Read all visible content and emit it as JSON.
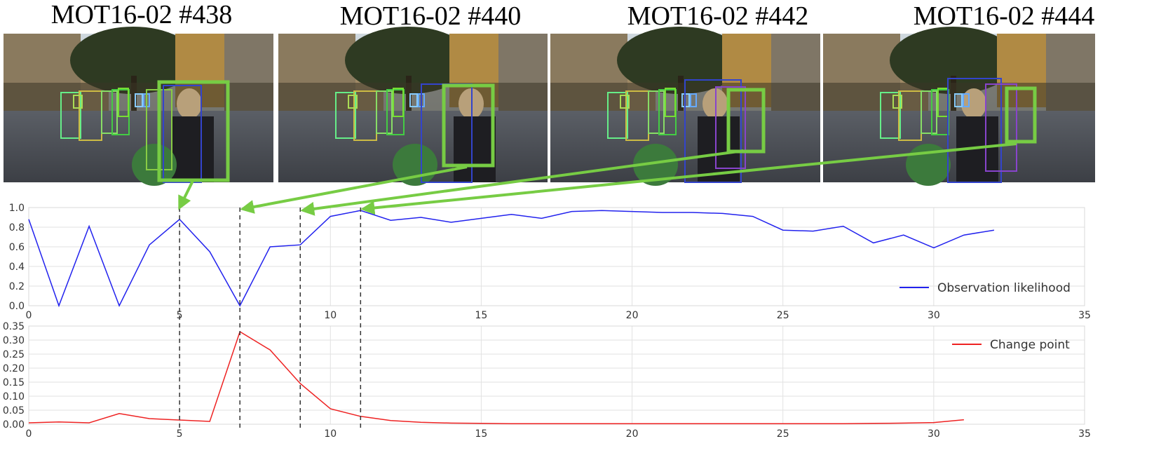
{
  "frames": [
    {
      "title": "MOT16-02 #438"
    },
    {
      "title": "MOT16-02 #440"
    },
    {
      "title": "MOT16-02 #442"
    },
    {
      "title": "MOT16-02 #444"
    }
  ],
  "colors": {
    "observation_line": "#2222ee",
    "change_line": "#ee2222",
    "highlight_box": "#77cc44",
    "arrow": "#77cc44",
    "grid": "#e2e2e2",
    "marker_line": "#333333"
  },
  "chart_data": [
    {
      "type": "line",
      "xlim": [
        0,
        35
      ],
      "ylim": [
        0,
        1.0
      ],
      "x_ticks": [
        "0",
        "5",
        "10",
        "15",
        "20",
        "25",
        "30",
        "35"
      ],
      "y_ticks": [
        "0.0",
        "0.2",
        "0.4",
        "0.6",
        "0.8",
        "1.0"
      ],
      "grid": true,
      "legend_position": "bottom-right",
      "markers_x": [
        5,
        7,
        9,
        11
      ],
      "series": [
        {
          "name": "Observation likelihood",
          "x": [
            0,
            1,
            2,
            3,
            4,
            5,
            6,
            7,
            8,
            9,
            10,
            11,
            12,
            13,
            14,
            15,
            16,
            17,
            18,
            19,
            20,
            21,
            22,
            23,
            24,
            25,
            26,
            27,
            28,
            29,
            30,
            31,
            32
          ],
          "values": [
            0.88,
            0.0,
            0.81,
            0.0,
            0.62,
            0.88,
            0.55,
            0.0,
            0.6,
            0.62,
            0.91,
            0.97,
            0.87,
            0.9,
            0.85,
            0.89,
            0.93,
            0.89,
            0.96,
            0.97,
            0.96,
            0.95,
            0.95,
            0.94,
            0.91,
            0.77,
            0.76,
            0.81,
            0.64,
            0.72,
            0.59,
            0.72,
            0.77
          ]
        }
      ]
    },
    {
      "type": "line",
      "xlim": [
        0,
        35
      ],
      "ylim": [
        0,
        0.35
      ],
      "x_ticks": [
        "0",
        "5",
        "10",
        "15",
        "20",
        "25",
        "30",
        "35"
      ],
      "y_ticks": [
        "0.00",
        "0.05",
        "0.10",
        "0.15",
        "0.20",
        "0.25",
        "0.30",
        "0.35"
      ],
      "grid": true,
      "legend_position": "top-right",
      "markers_x": [
        5,
        7,
        9,
        11
      ],
      "series": [
        {
          "name": "Change point",
          "x": [
            0,
            1,
            2,
            3,
            4,
            5,
            6,
            7,
            8,
            9,
            10,
            11,
            12,
            13,
            14,
            15,
            16,
            17,
            18,
            19,
            20,
            21,
            22,
            23,
            24,
            25,
            26,
            27,
            28,
            29,
            30,
            31
          ],
          "values": [
            0.005,
            0.008,
            0.005,
            0.038,
            0.02,
            0.015,
            0.01,
            0.33,
            0.265,
            0.145,
            0.055,
            0.028,
            0.013,
            0.007,
            0.004,
            0.003,
            0.002,
            0.002,
            0.002,
            0.002,
            0.002,
            0.002,
            0.002,
            0.002,
            0.002,
            0.002,
            0.002,
            0.002,
            0.003,
            0.004,
            0.006,
            0.016
          ]
        }
      ]
    }
  ]
}
